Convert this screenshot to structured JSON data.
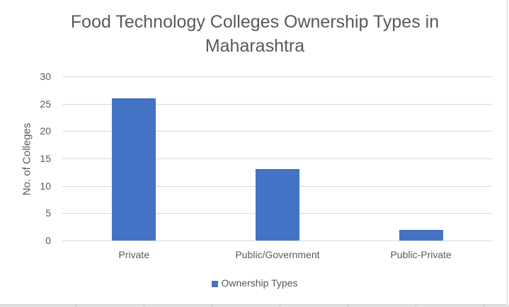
{
  "chart_data": {
    "type": "bar",
    "title": "Food Technology Colleges Ownership Types in Maharashtra",
    "xlabel": "",
    "ylabel": "No. of Colleges",
    "categories": [
      "Private",
      "Public/Government",
      "Public-Private"
    ],
    "series": [
      {
        "name": "Ownership Types",
        "values": [
          26,
          13,
          2
        ],
        "color": "#4472c4"
      }
    ],
    "ylim": [
      0,
      30
    ],
    "yticks": [
      0,
      5,
      10,
      15,
      20,
      25,
      30
    ],
    "grid": true,
    "legend_position": "bottom"
  },
  "labels": {
    "title_line1": "Food Technology Colleges Ownership Types in",
    "title_line2": "Maharashtra",
    "ylabel": "No. of Colleges",
    "legend": "Ownership Types",
    "ticks": [
      "0",
      "5",
      "10",
      "15",
      "20",
      "25",
      "30"
    ],
    "categories": [
      "Private",
      "Public/Government",
      "Public-Private"
    ]
  }
}
